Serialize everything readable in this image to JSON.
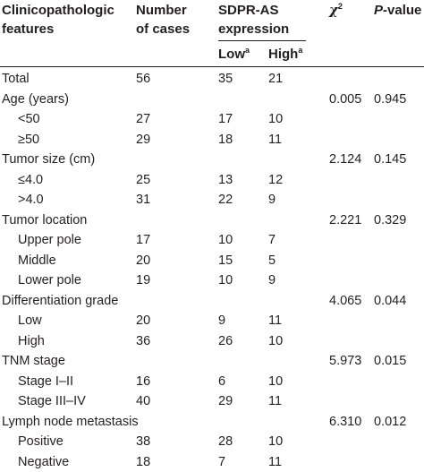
{
  "header": {
    "col_features": [
      "Clinicopathologic",
      "features"
    ],
    "col_cases": [
      "Number",
      "of cases"
    ],
    "col_expression": [
      "SDPR-AS",
      "expression"
    ],
    "sub_low": "Low",
    "sub_low_sup": "a",
    "sub_high": "High",
    "sub_high_sup": "a",
    "col_chi_symbol": "χ",
    "col_chi_sup": "2",
    "col_p_italic": "P",
    "col_p_rest": "-value"
  },
  "rows": [
    {
      "label": "Total",
      "sub": false,
      "n": "56",
      "low": "35",
      "high": "21",
      "chi": "",
      "p": ""
    },
    {
      "label": "Age (years)",
      "sub": false,
      "n": "",
      "low": "",
      "high": "",
      "chi": "0.005",
      "p": "0.945"
    },
    {
      "label": "<50",
      "sub": true,
      "n": "27",
      "low": "17",
      "high": "10",
      "chi": "",
      "p": ""
    },
    {
      "label": "≥50",
      "sub": true,
      "n": "29",
      "low": "18",
      "high": "11",
      "chi": "",
      "p": ""
    },
    {
      "label": "Tumor size (cm)",
      "sub": false,
      "n": "",
      "low": "",
      "high": "",
      "chi": "2.124",
      "p": "0.145"
    },
    {
      "label": "≤4.0",
      "sub": true,
      "n": "25",
      "low": "13",
      "high": "12",
      "chi": "",
      "p": ""
    },
    {
      "label": ">4.0",
      "sub": true,
      "n": "31",
      "low": "22",
      "high": "9",
      "chi": "",
      "p": ""
    },
    {
      "label": "Tumor location",
      "sub": false,
      "n": "",
      "low": "",
      "high": "",
      "chi": "2.221",
      "p": "0.329"
    },
    {
      "label": "Upper pole",
      "sub": true,
      "n": "17",
      "low": "10",
      "high": "7",
      "chi": "",
      "p": ""
    },
    {
      "label": "Middle",
      "sub": true,
      "n": "20",
      "low": "15",
      "high": "5",
      "chi": "",
      "p": ""
    },
    {
      "label": "Lower pole",
      "sub": true,
      "n": "19",
      "low": "10",
      "high": "9",
      "chi": "",
      "p": ""
    },
    {
      "label": "Differentiation grade",
      "sub": false,
      "n": "",
      "low": "",
      "high": "",
      "chi": "4.065",
      "p": "0.044"
    },
    {
      "label": "Low",
      "sub": true,
      "n": "20",
      "low": "9",
      "high": "11",
      "chi": "",
      "p": ""
    },
    {
      "label": "High",
      "sub": true,
      "n": "36",
      "low": "26",
      "high": "10",
      "chi": "",
      "p": ""
    },
    {
      "label": "TNM stage",
      "sub": false,
      "n": "",
      "low": "",
      "high": "",
      "chi": "5.973",
      "p": "0.015"
    },
    {
      "label": "Stage I–II",
      "sub": true,
      "n": "16",
      "low": "6",
      "high": "10",
      "chi": "",
      "p": ""
    },
    {
      "label": "Stage III–IV",
      "sub": true,
      "n": "40",
      "low": "29",
      "high": "11",
      "chi": "",
      "p": ""
    },
    {
      "label": "Lymph node metastasis",
      "sub": false,
      "n": "",
      "low": "",
      "high": "",
      "chi": "6.310",
      "p": "0.012"
    },
    {
      "label": "Positive",
      "sub": true,
      "n": "38",
      "low": "28",
      "high": "10",
      "chi": "",
      "p": ""
    },
    {
      "label": "Negative",
      "sub": true,
      "n": "18",
      "low": "7",
      "high": "11",
      "chi": "",
      "p": ""
    }
  ]
}
